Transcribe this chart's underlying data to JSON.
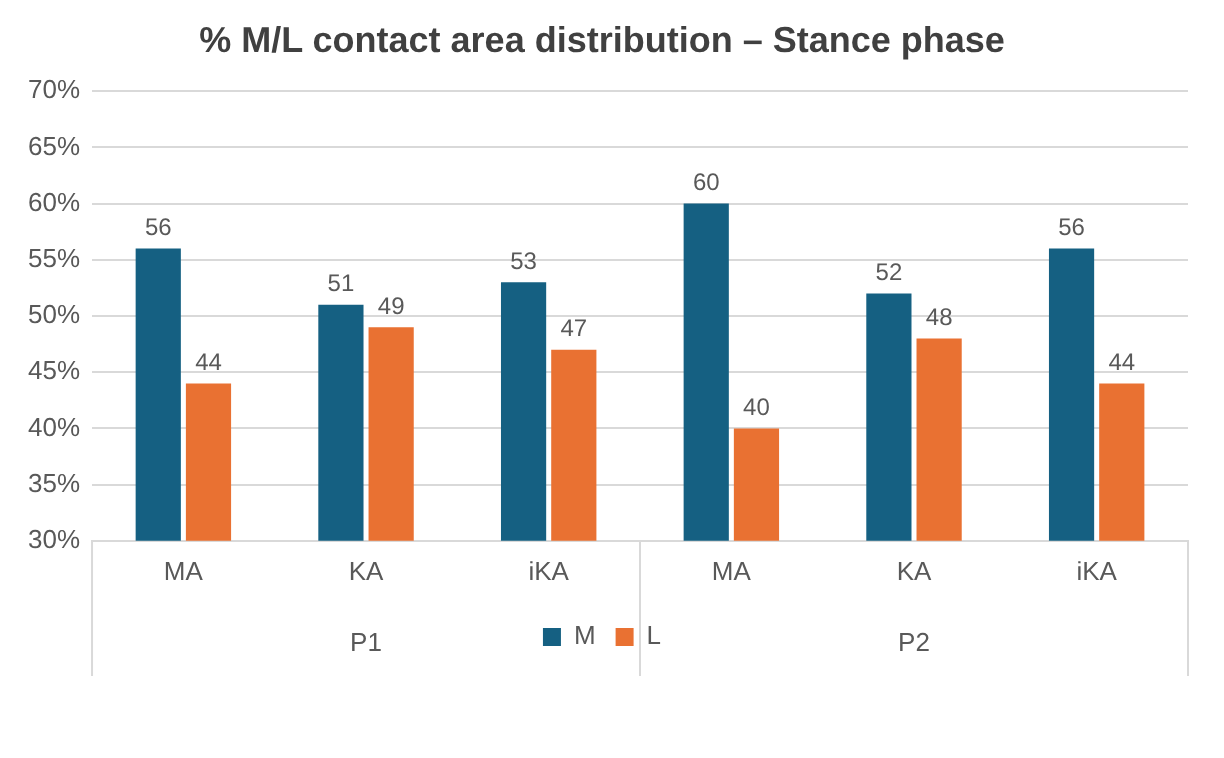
{
  "chart_data": {
    "type": "bar",
    "title": "% M/L contact area distribution – Stance phase",
    "categories": [
      "MA",
      "KA",
      "iKA",
      "MA",
      "KA",
      "iKA"
    ],
    "series": [
      {
        "name": "M",
        "color": "#156082",
        "values": [
          56,
          51,
          53,
          60,
          52,
          56
        ]
      },
      {
        "name": "L",
        "color": "#e97132",
        "values": [
          44,
          49,
          47,
          40,
          48,
          44
        ]
      }
    ],
    "ylim": [
      30,
      70
    ],
    "yticks": [
      {
        "value": 30,
        "label": "30%"
      },
      {
        "value": 35,
        "label": "35%"
      },
      {
        "value": 40,
        "label": "40%"
      },
      {
        "value": 45,
        "label": "45%"
      },
      {
        "value": 50,
        "label": "50%"
      },
      {
        "value": 55,
        "label": "55%"
      },
      {
        "value": 60,
        "label": "60%"
      },
      {
        "value": 65,
        "label": "65%"
      },
      {
        "value": 70,
        "label": "70%"
      }
    ],
    "annotations": [
      "P1",
      "P2"
    ],
    "data_labels": true,
    "grid": "y",
    "legend": "bottom"
  }
}
